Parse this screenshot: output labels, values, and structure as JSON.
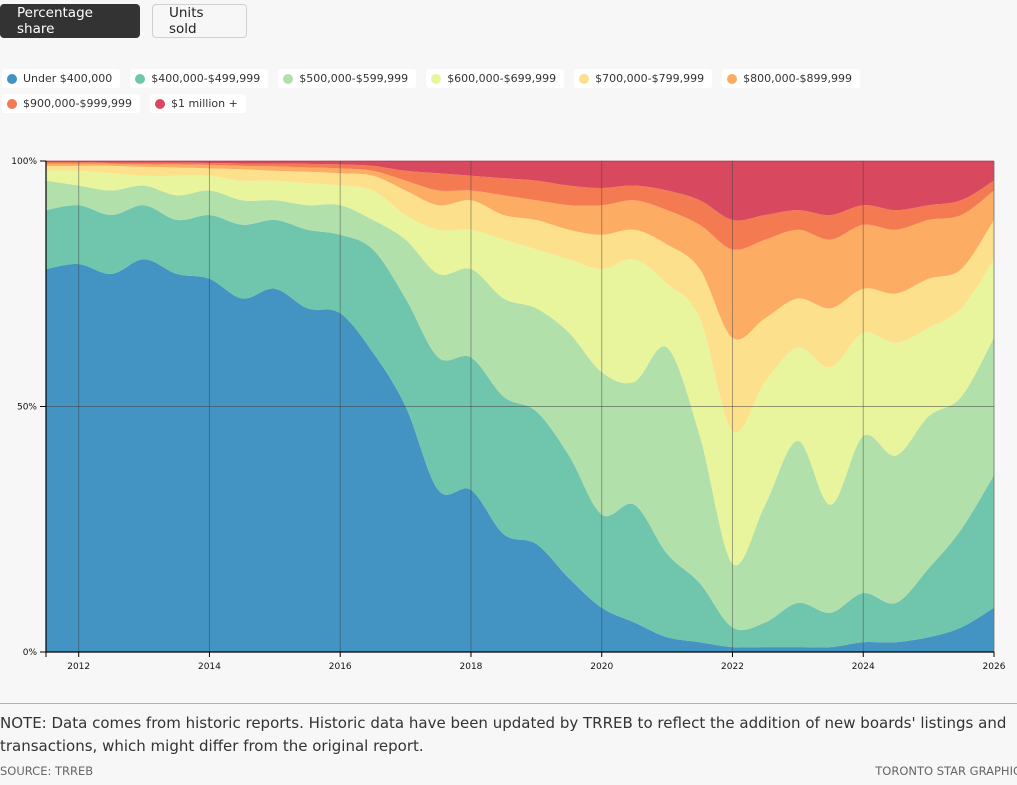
{
  "toggle": {
    "percentage_label": "Percentage share",
    "units_label": "Units sold",
    "active": "Percentage share"
  },
  "legend": [
    {
      "label": "Under $400,000",
      "color": "#4393c3"
    },
    {
      "label": "$400,000-$499,999",
      "color": "#70c6ad"
    },
    {
      "label": "$500,000-$599,999",
      "color": "#b2e0ab"
    },
    {
      "label": "$600,000-$699,999",
      "color": "#e9f59d"
    },
    {
      "label": "$700,000-$799,999",
      "color": "#fde08b"
    },
    {
      "label": "$800,000-$899,999",
      "color": "#fcac63"
    },
    {
      "label": "$900,000-$999,999",
      "color": "#f47a51"
    },
    {
      "label": "$1 million +",
      "color": "#d8495f"
    }
  ],
  "chart_data": {
    "type": "area",
    "stacked": true,
    "normalized": true,
    "title": "",
    "xlabel": "",
    "ylabel": "",
    "xlim": [
      2011.5,
      2026
    ],
    "ylim": [
      0,
      100
    ],
    "x_ticks": [
      "2012",
      "2014",
      "2016",
      "2018",
      "2020",
      "2022",
      "2024",
      "2026"
    ],
    "x_tick_values": [
      2012,
      2014,
      2016,
      2018,
      2020,
      2022,
      2024,
      2026
    ],
    "y_ticks": [
      "0%",
      "50%",
      "100%"
    ],
    "y_tick_values": [
      0,
      50,
      100
    ],
    "grid": true,
    "legend_position": "top",
    "x": [
      2011.5,
      2012,
      2012.5,
      2013,
      2013.5,
      2014,
      2014.5,
      2015,
      2015.5,
      2016,
      2016.5,
      2017,
      2017.5,
      2018,
      2018.5,
      2019,
      2019.5,
      2020,
      2020.5,
      2021,
      2021.5,
      2022,
      2022.5,
      2023,
      2023.5,
      2024,
      2024.5,
      2025,
      2025.5,
      2026
    ],
    "series": [
      {
        "name": "Under $400,000",
        "values": [
          78,
          79,
          77,
          80,
          77,
          76,
          72,
          74,
          70,
          69,
          61,
          50,
          33,
          33,
          24,
          22,
          15,
          9,
          6,
          3,
          2,
          1,
          1,
          1,
          1,
          2,
          2,
          3,
          5,
          9
        ]
      },
      {
        "name": "$400,000-$499,999",
        "values": [
          12,
          12,
          12,
          11,
          11,
          13,
          15,
          14,
          16,
          16,
          21,
          22,
          27,
          27,
          28,
          27,
          25,
          19,
          24,
          17,
          12,
          4,
          5,
          9,
          7,
          10,
          8,
          14,
          20,
          27
        ]
      },
      {
        "name": "$500,000-$599,999",
        "values": [
          6,
          4,
          5,
          4,
          5,
          5,
          5,
          4,
          5,
          6,
          6,
          12,
          17,
          18,
          20,
          21,
          25,
          29,
          25,
          42,
          30,
          13,
          24,
          33,
          22,
          32,
          30,
          31,
          27,
          28
        ]
      },
      {
        "name": "$600,000-$699,999",
        "values": [
          2,
          3,
          3.5,
          2,
          4,
          3,
          4,
          4,
          4.5,
          4,
          6,
          5,
          9,
          8,
          12,
          12,
          15,
          21,
          25,
          13,
          24,
          27,
          25,
          19,
          28,
          21,
          23,
          18,
          18,
          16
        ]
      },
      {
        "name": "$700,000-$799,999",
        "values": [
          1,
          1,
          1.5,
          1.8,
          1.7,
          1.5,
          2.3,
          2,
          2.3,
          2.5,
          3,
          5,
          5,
          6,
          5,
          6,
          6,
          7,
          6,
          8,
          10,
          19,
          13,
          10,
          12,
          9,
          10,
          10,
          8,
          8
        ]
      },
      {
        "name": "$800,000-$899,999",
        "values": [
          0.5,
          0.5,
          0.4,
          0.5,
          0.6,
          0.7,
          0.7,
          0.9,
          0.9,
          1,
          1,
          2,
          3,
          2,
          4,
          4,
          5,
          6,
          6,
          7,
          9,
          18,
          16,
          14,
          14,
          13,
          13,
          12,
          11,
          6
        ]
      },
      {
        "name": "$900,000-$999,999",
        "values": [
          0.3,
          0.3,
          0.3,
          0.4,
          0.4,
          0.4,
          0.5,
          0.6,
          0.7,
          0.8,
          1,
          2,
          3.5,
          3,
          3.5,
          4,
          4,
          3.5,
          3,
          4,
          5,
          6,
          5,
          4,
          5,
          4,
          4,
          3,
          3,
          2
        ]
      },
      {
        "name": "$1 million +",
        "values": [
          0.2,
          0.2,
          0.3,
          0.3,
          0.3,
          0.4,
          0.5,
          0.5,
          0.6,
          0.7,
          1,
          2,
          2.5,
          3,
          3.5,
          4,
          5,
          5.5,
          5,
          6,
          8,
          12,
          11,
          10,
          11,
          9,
          10,
          9,
          8,
          4
        ]
      }
    ]
  },
  "footer": {
    "note": "NOTE: Data comes from historic reports. Historic data have been updated by TRREB to reflect the addition of new boards' listings and transactions, which might differ from the original report.",
    "source": "SOURCE: TRREB",
    "credit": "TORONTO STAR GRAPHIC"
  }
}
